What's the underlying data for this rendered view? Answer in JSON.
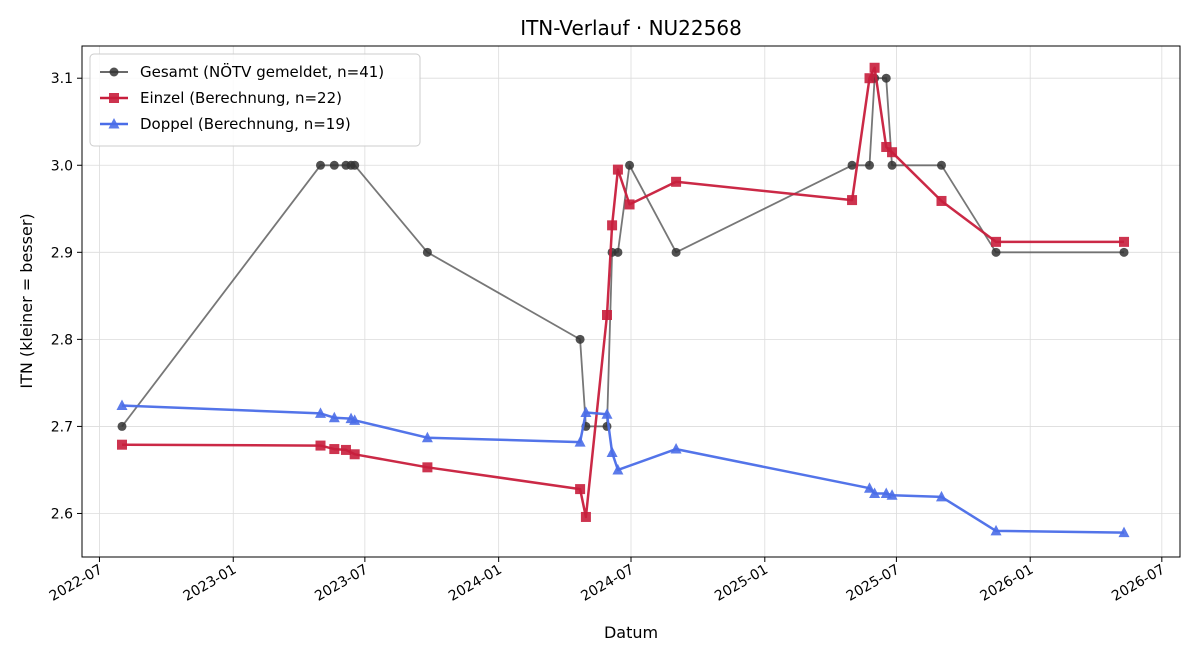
{
  "chart_data": {
    "type": "line",
    "title": "ITN-Verlauf · NU22568",
    "xlabel": "Datum",
    "ylabel": "ITN  (kleiner = besser)",
    "x_scale": "date",
    "xlim": [
      "2022-06-07",
      "2026-07-26"
    ],
    "ylim": [
      2.55,
      3.137
    ],
    "x_ticks": [
      "2022-07-01",
      "2023-01-01",
      "2023-07-01",
      "2024-01-01",
      "2024-07-01",
      "2025-01-01",
      "2025-07-01",
      "2026-01-01",
      "2026-07-01"
    ],
    "x_tick_labels": [
      "2022-07",
      "2023-01",
      "2023-07",
      "2024-01",
      "2024-07",
      "2025-01",
      "2025-07",
      "2026-01",
      "2026-07"
    ],
    "y_ticks": [
      2.6,
      2.7,
      2.8,
      2.9,
      3.0,
      3.1
    ],
    "y_tick_labels": [
      "2.6",
      "2.7",
      "2.8",
      "2.9",
      "3.0",
      "3.1"
    ],
    "grid": true,
    "legend_position": "top-left",
    "series": [
      {
        "name": "Gesamt (NÖTV gemeldet, n=41)",
        "color": "#555555",
        "marker": "circle",
        "points": [
          {
            "x": "2022-08-01",
            "y": 2.7
          },
          {
            "x": "2023-05-01",
            "y": 3.0
          },
          {
            "x": "2023-05-20",
            "y": 3.0
          },
          {
            "x": "2023-06-05",
            "y": 3.0
          },
          {
            "x": "2023-06-12",
            "y": 3.0
          },
          {
            "x": "2023-06-17",
            "y": 3.0
          },
          {
            "x": "2023-09-25",
            "y": 2.9
          },
          {
            "x": "2024-04-22",
            "y": 2.8
          },
          {
            "x": "2024-04-30",
            "y": 2.7
          },
          {
            "x": "2024-05-29",
            "y": 2.7
          },
          {
            "x": "2024-06-05",
            "y": 2.9
          },
          {
            "x": "2024-06-13",
            "y": 2.9
          },
          {
            "x": "2024-06-29",
            "y": 3.0
          },
          {
            "x": "2024-09-01",
            "y": 2.9
          },
          {
            "x": "2025-05-01",
            "y": 3.0
          },
          {
            "x": "2025-05-25",
            "y": 3.0
          },
          {
            "x": "2025-06-01",
            "y": 3.1
          },
          {
            "x": "2025-06-17",
            "y": 3.1
          },
          {
            "x": "2025-06-25",
            "y": 3.0
          },
          {
            "x": "2025-09-01",
            "y": 3.0
          },
          {
            "x": "2025-11-15",
            "y": 2.9
          },
          {
            "x": "2026-05-10",
            "y": 2.9
          }
        ]
      },
      {
        "name": "Einzel (Berechnung, n=22)",
        "color": "#c81e3c",
        "marker": "square",
        "points": [
          {
            "x": "2022-08-01",
            "y": 2.679
          },
          {
            "x": "2023-05-01",
            "y": 2.678
          },
          {
            "x": "2023-05-20",
            "y": 2.674
          },
          {
            "x": "2023-06-05",
            "y": 2.673
          },
          {
            "x": "2023-06-17",
            "y": 2.668
          },
          {
            "x": "2023-09-25",
            "y": 2.653
          },
          {
            "x": "2024-04-22",
            "y": 2.628
          },
          {
            "x": "2024-04-30",
            "y": 2.596
          },
          {
            "x": "2024-05-29",
            "y": 2.828
          },
          {
            "x": "2024-06-05",
            "y": 2.931
          },
          {
            "x": "2024-06-13",
            "y": 2.995
          },
          {
            "x": "2024-06-29",
            "y": 2.955
          },
          {
            "x": "2024-09-01",
            "y": 2.981
          },
          {
            "x": "2025-05-01",
            "y": 2.96
          },
          {
            "x": "2025-05-25",
            "y": 3.1
          },
          {
            "x": "2025-06-01",
            "y": 3.112
          },
          {
            "x": "2025-06-17",
            "y": 3.021
          },
          {
            "x": "2025-06-25",
            "y": 3.015
          },
          {
            "x": "2025-09-01",
            "y": 2.959
          },
          {
            "x": "2025-11-15",
            "y": 2.912
          },
          {
            "x": "2026-05-10",
            "y": 2.912
          }
        ]
      },
      {
        "name": "Doppel (Berechnung, n=19)",
        "color": "#4a6de8",
        "marker": "triangle",
        "points": [
          {
            "x": "2022-08-01",
            "y": 2.724
          },
          {
            "x": "2023-05-01",
            "y": 2.715
          },
          {
            "x": "2023-05-20",
            "y": 2.71
          },
          {
            "x": "2023-06-12",
            "y": 2.709
          },
          {
            "x": "2023-06-17",
            "y": 2.707
          },
          {
            "x": "2023-09-25",
            "y": 2.687
          },
          {
            "x": "2024-04-22",
            "y": 2.682
          },
          {
            "x": "2024-04-30",
            "y": 2.716
          },
          {
            "x": "2024-05-29",
            "y": 2.714
          },
          {
            "x": "2024-06-05",
            "y": 2.67
          },
          {
            "x": "2024-06-13",
            "y": 2.65
          },
          {
            "x": "2024-09-01",
            "y": 2.674
          },
          {
            "x": "2025-05-25",
            "y": 2.629
          },
          {
            "x": "2025-06-01",
            "y": 2.623
          },
          {
            "x": "2025-06-17",
            "y": 2.623
          },
          {
            "x": "2025-06-25",
            "y": 2.621
          },
          {
            "x": "2025-09-01",
            "y": 2.619
          },
          {
            "x": "2025-11-15",
            "y": 2.58
          },
          {
            "x": "2026-05-10",
            "y": 2.578
          }
        ]
      }
    ]
  }
}
